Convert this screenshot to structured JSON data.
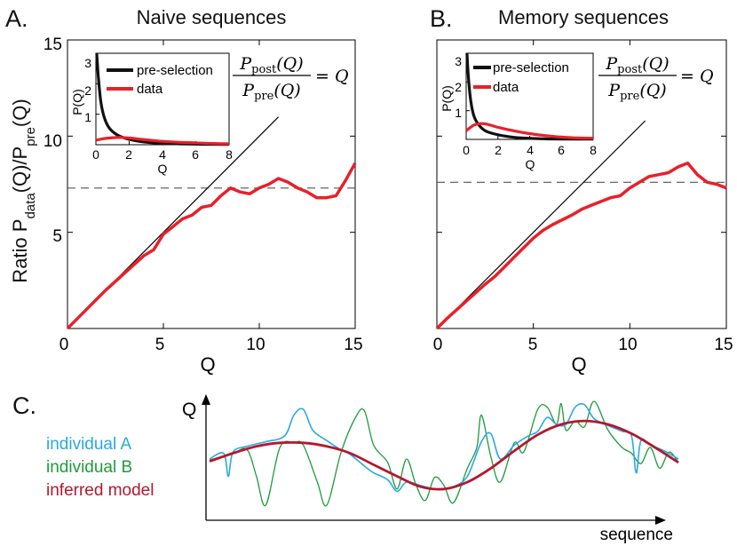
{
  "chart_data": [
    {
      "panel_label": "A.",
      "title": "Naive sequences",
      "type": "line",
      "xlabel": "Q",
      "ylabel": {
        "main": "Ratio P",
        "sub1": "data",
        "mid": "(Q)/P",
        "sub2": "pre",
        "end": "(Q)"
      },
      "xlim": [
        0,
        15
      ],
      "ylim": [
        0,
        15
      ],
      "xticks": [
        "0",
        "5",
        "10",
        "15"
      ],
      "yticks": [
        "5",
        "10",
        "15"
      ],
      "series": [
        {
          "name": "ratio",
          "color": "#e8202a",
          "x": [
            0,
            0.5,
            1,
            1.5,
            2,
            2.5,
            3,
            3.5,
            4,
            4.5,
            5,
            5.5,
            6,
            6.5,
            7,
            7.5,
            8,
            8.5,
            9,
            9.5,
            10,
            10.5,
            11,
            11.5,
            12,
            12.5,
            13,
            13.5,
            14,
            14.5,
            15
          ],
          "values": [
            0,
            0.5,
            1,
            1.5,
            2,
            2.45,
            2.9,
            3.35,
            3.8,
            4.1,
            4.9,
            5.3,
            5.7,
            5.9,
            6.3,
            6.4,
            6.9,
            7.3,
            7.1,
            7.0,
            7.3,
            7.5,
            7.8,
            7.6,
            7.3,
            7.1,
            6.8,
            6.8,
            6.9,
            7.7,
            8.6
          ]
        },
        {
          "name": "identity Q",
          "color": "#000000",
          "x": [
            0,
            11
          ],
          "values": [
            0,
            11
          ]
        },
        {
          "name": "reference level",
          "color": "#555555",
          "style": "dashed",
          "x": [
            0,
            15
          ],
          "values": [
            7.3,
            7.3
          ]
        }
      ],
      "inset": {
        "xlim": [
          0,
          8
        ],
        "ylim": [
          0,
          3
        ],
        "xticks": [
          "0",
          "2",
          "4",
          "6",
          "8"
        ],
        "yticks": [
          "1",
          "2",
          "3"
        ],
        "xlabel": "Q",
        "ylabel": "P(Q)",
        "legend": [
          "pre-selection",
          "data"
        ],
        "series": [
          {
            "name": "pre-selection",
            "color": "#111111",
            "x": [
              0.05,
              0.15,
              0.3,
              0.5,
              0.8,
              1.2,
              1.7,
              2.5,
              3.5,
              5,
              6.5,
              8
            ],
            "values": [
              3.0,
              2.2,
              1.4,
              0.9,
              0.55,
              0.35,
              0.22,
              0.12,
              0.06,
              0.03,
              0.015,
              0.01
            ]
          },
          {
            "name": "data",
            "color": "#e8202a",
            "x": [
              0,
              0.5,
              1,
              1.5,
              2,
              3,
              4,
              5,
              6,
              7,
              8
            ],
            "values": [
              0.15,
              0.2,
              0.23,
              0.24,
              0.22,
              0.16,
              0.11,
              0.08,
              0.06,
              0.04,
              0.03
            ]
          }
        ]
      },
      "formula": {
        "num": "P",
        "num_sub": "post",
        "num_arg": "(Q)",
        "den": "P",
        "den_sub": "pre",
        "den_arg": "(Q)",
        "rhs": "= Q"
      }
    },
    {
      "panel_label": "B.",
      "title": "Memory sequences",
      "type": "line",
      "xlabel": "Q",
      "xlim": [
        0,
        15
      ],
      "ylim": [
        0,
        15
      ],
      "xticks": [
        "0",
        "5",
        "10",
        "15"
      ],
      "series": [
        {
          "name": "ratio",
          "color": "#e8202a",
          "x": [
            0,
            0.5,
            1,
            1.5,
            2,
            2.5,
            3,
            3.5,
            4,
            4.5,
            5,
            5.5,
            6,
            6.5,
            7,
            7.5,
            8,
            8.5,
            9,
            9.5,
            10,
            10.5,
            11,
            11.5,
            12,
            12.5,
            13,
            13.5,
            14,
            14.5,
            15
          ],
          "values": [
            0,
            0.5,
            0.95,
            1.4,
            1.85,
            2.3,
            2.7,
            3.2,
            3.7,
            4.2,
            4.7,
            5.1,
            5.4,
            5.65,
            5.9,
            6.2,
            6.4,
            6.6,
            6.8,
            6.9,
            7.3,
            7.6,
            7.9,
            8.0,
            8.1,
            8.4,
            8.6,
            8.0,
            7.6,
            7.5,
            7.3
          ]
        },
        {
          "name": "identity Q",
          "color": "#000000",
          "x": [
            0,
            10.8
          ],
          "values": [
            0,
            10.8
          ]
        },
        {
          "name": "reference level",
          "color": "#555555",
          "style": "dashed",
          "x": [
            0,
            15
          ],
          "values": [
            7.6,
            7.6
          ]
        }
      ],
      "inset": {
        "xlim": [
          0,
          8
        ],
        "ylim": [
          0,
          3
        ],
        "xticks": [
          "0",
          "2",
          "4",
          "6",
          "8"
        ],
        "yticks": [
          "1",
          "2",
          "3"
        ],
        "xlabel": "Q",
        "ylabel": "P(Q)",
        "legend": [
          "pre-selection",
          "data"
        ],
        "series": [
          {
            "name": "pre-selection",
            "color": "#111111",
            "x": [
              0.05,
              0.15,
              0.3,
              0.5,
              0.8,
              1.2,
              1.7,
              2.5,
              3.5,
              5,
              6.5,
              8
            ],
            "values": [
              3.0,
              2.1,
              1.3,
              0.8,
              0.5,
              0.3,
              0.2,
              0.11,
              0.05,
              0.02,
              0.01,
              0.01
            ]
          },
          {
            "name": "data",
            "color": "#e8202a",
            "x": [
              0,
              0.5,
              1,
              1.5,
              2,
              3,
              4,
              5,
              6,
              7,
              8
            ],
            "values": [
              0.3,
              0.5,
              0.55,
              0.5,
              0.42,
              0.3,
              0.2,
              0.13,
              0.08,
              0.05,
              0.04
            ]
          }
        ]
      },
      "formula": {
        "num": "P",
        "num_sub": "post",
        "num_arg": "(Q)",
        "den": "P",
        "den_sub": "pre",
        "den_arg": "(Q)",
        "rhs": "= Q"
      }
    },
    {
      "panel_label": "C.",
      "type": "line",
      "title": "",
      "xlabel": "sequence",
      "ylabel": "Q",
      "xlim": [
        0,
        100
      ],
      "ylim": [
        0,
        100
      ],
      "legend": [
        {
          "name": "individual A",
          "color": "#29a9e1"
        },
        {
          "name": "individual B",
          "color": "#1f9a3c"
        },
        {
          "name": "inferred model",
          "color": "#b5172f"
        }
      ],
      "series": [
        {
          "name": "inferred model",
          "color": "#b5172f",
          "x": [
            0,
            5,
            10,
            15,
            20,
            25,
            30,
            35,
            40,
            45,
            50,
            55,
            60,
            65,
            70,
            75,
            80,
            85,
            90,
            95,
            100
          ],
          "values": [
            48,
            55,
            61,
            64,
            64,
            61,
            55,
            45,
            35,
            26,
            24,
            30,
            42,
            57,
            71,
            80,
            83,
            80,
            72,
            60,
            47
          ]
        },
        {
          "name": "individual A",
          "color": "#29a9e1",
          "x": [
            0,
            3,
            4,
            5,
            8,
            12,
            16,
            18,
            20,
            22,
            25,
            28,
            30,
            33,
            35,
            38,
            40,
            42,
            45,
            48,
            50,
            52,
            55,
            58,
            60,
            62,
            65,
            68,
            70,
            72,
            74,
            76,
            78,
            80,
            82,
            85,
            88,
            90,
            91,
            92,
            94,
            97,
            100
          ],
          "values": [
            50,
            55,
            35,
            56,
            61,
            65,
            70,
            88,
            93,
            75,
            66,
            58,
            54,
            44,
            38,
            32,
            22,
            30,
            27,
            24,
            24,
            26,
            35,
            65,
            72,
            50,
            62,
            70,
            74,
            86,
            80,
            80,
            95,
            97,
            85,
            79,
            74,
            70,
            38,
            66,
            62,
            57,
            50
          ]
        },
        {
          "name": "individual B",
          "color": "#1f9a3c",
          "x": [
            0,
            5,
            8,
            10,
            12,
            15,
            18,
            20,
            23,
            25,
            28,
            31,
            33,
            35,
            38,
            40,
            42,
            44,
            46,
            48,
            50,
            52,
            55,
            57,
            58,
            60,
            62,
            65,
            67,
            70,
            72,
            74,
            75,
            76,
            78,
            80,
            82,
            85,
            88,
            90,
            92,
            94,
            96,
            98,
            100
          ],
          "values": [
            49,
            55,
            58,
            35,
            10,
            60,
            64,
            62,
            30,
            10,
            55,
            85,
            92,
            62,
            47,
            24,
            50,
            28,
            14,
            34,
            27,
            12,
            42,
            60,
            88,
            52,
            30,
            64,
            56,
            93,
            95,
            80,
            98,
            75,
            83,
            78,
            100,
            75,
            60,
            55,
            46,
            60,
            42,
            56,
            47
          ]
        }
      ]
    }
  ]
}
